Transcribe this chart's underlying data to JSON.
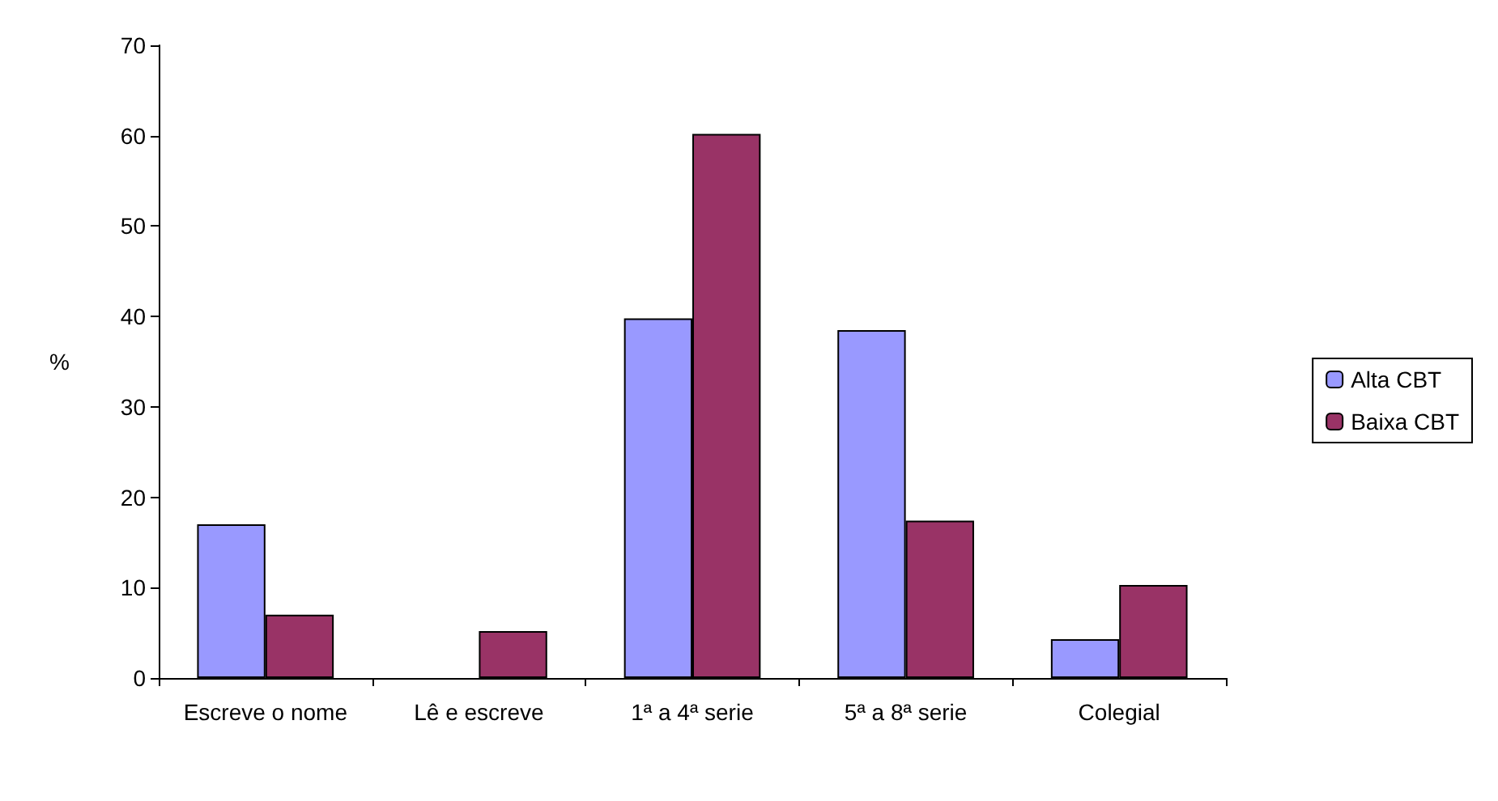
{
  "chart_data": {
    "type": "bar",
    "ylabel": "%",
    "categories": [
      "Escreve o nome",
      "Lê e escreve",
      "1ª a 4ª serie",
      "5ª a 8ª serie",
      "Colegial"
    ],
    "series": [
      {
        "name": "Alta CBT",
        "color": "#9999ff",
        "values": [
          17,
          null,
          39.8,
          38.5,
          4.3
        ]
      },
      {
        "name": "Baixa CBT",
        "color": "#993366",
        "values": [
          7,
          5.2,
          60.2,
          17.4,
          10.3
        ]
      }
    ],
    "ylim": [
      0,
      70
    ],
    "yticks": [
      0,
      10,
      20,
      30,
      40,
      50,
      60,
      70
    ],
    "grid": false,
    "legend": "right"
  }
}
